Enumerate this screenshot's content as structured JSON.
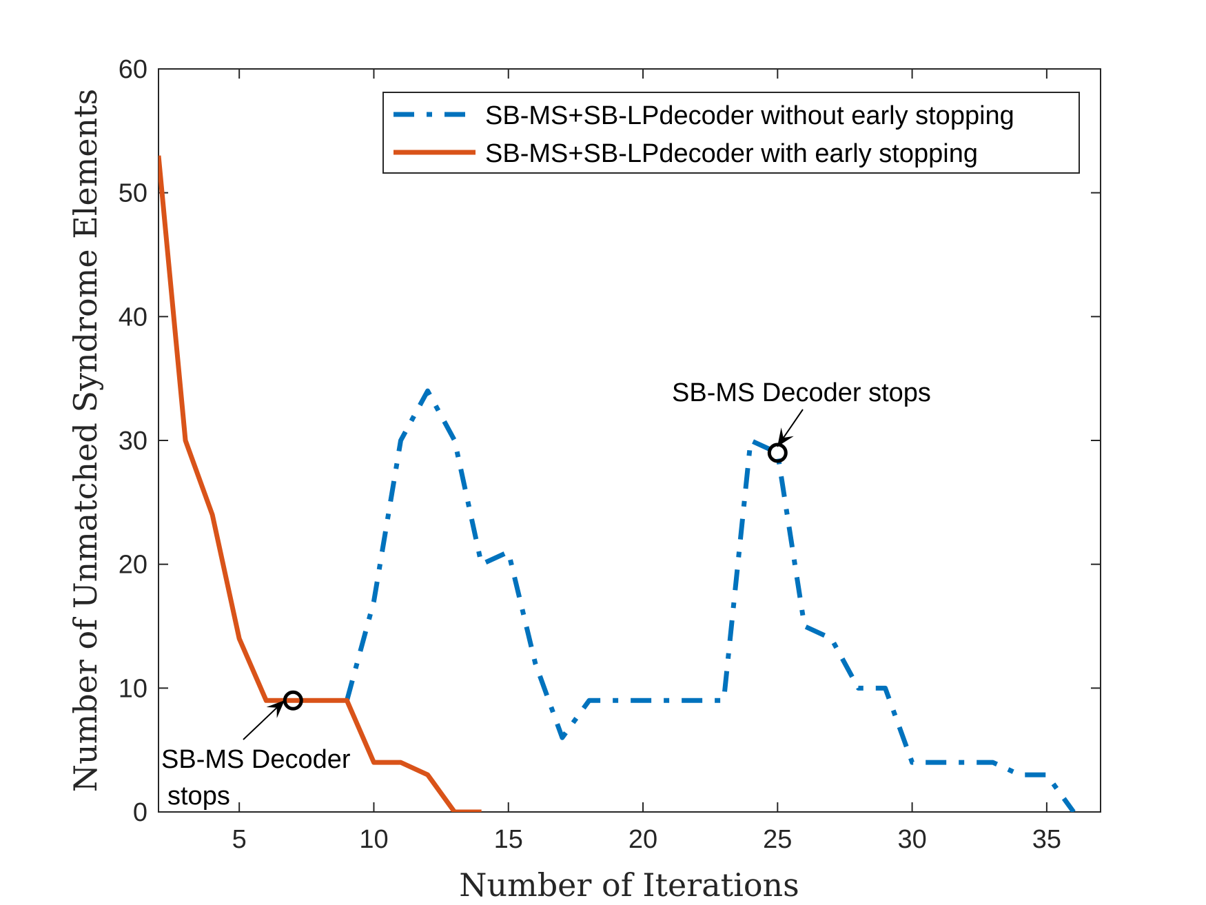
{
  "chart_data": {
    "type": "line",
    "title": "",
    "xlabel": "Number of Iterations",
    "ylabel": "Number of Unmatched Syndrome Elements",
    "xlim": [
      2,
      37
    ],
    "ylim": [
      0,
      60
    ],
    "xticks": [
      5,
      10,
      15,
      20,
      25,
      30,
      35
    ],
    "yticks": [
      0,
      10,
      20,
      30,
      40,
      50,
      60
    ],
    "grid": false,
    "legend_position": "top-right",
    "series": [
      {
        "name": "SB-MS+SB-LPdecoder without early stopping",
        "style": "dash-dot",
        "color": "#0072BD",
        "x": [
          9,
          10,
          11,
          12,
          13,
          14,
          15,
          16,
          17,
          18,
          19,
          20,
          21,
          22,
          23,
          24,
          25,
          26,
          27,
          28,
          29,
          30,
          31,
          32,
          33,
          34,
          35,
          36
        ],
        "y": [
          9,
          17,
          30,
          34,
          30,
          20,
          21,
          12,
          6,
          9,
          9,
          9,
          9,
          9,
          9,
          30,
          29,
          15,
          14,
          10,
          10,
          4,
          4,
          4,
          4,
          3,
          3,
          0
        ]
      },
      {
        "name": "SB-MS+SB-LPdecoder with early stopping",
        "style": "solid",
        "color": "#D95319",
        "x": [
          2,
          3,
          4,
          5,
          6,
          7,
          8,
          9,
          10,
          11,
          12,
          13,
          14
        ],
        "y": [
          53,
          30,
          24,
          14,
          9,
          9,
          9,
          9,
          4,
          4,
          3,
          0,
          0
        ]
      }
    ],
    "annotations": [
      {
        "marker_point": [
          7,
          9
        ],
        "text_lines": [
          "SB-MS Decoder",
          "stops"
        ]
      },
      {
        "marker_point": [
          25,
          29
        ],
        "text_lines": [
          "SB-MS Decoder stops"
        ]
      }
    ]
  }
}
